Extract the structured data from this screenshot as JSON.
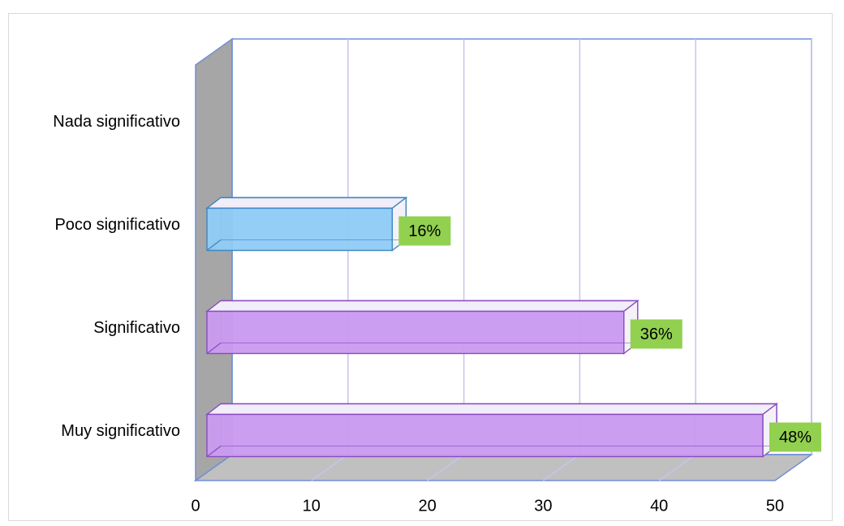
{
  "chart_data": {
    "type": "bar",
    "orientation": "horizontal",
    "style": "3d-clustered-bar",
    "categories": [
      "Nada significativo",
      "Poco significativo",
      "Significativo",
      "Muy significativo"
    ],
    "values": [
      0,
      16,
      36,
      48
    ],
    "data_labels": [
      "",
      "16%",
      "36%",
      "48%"
    ],
    "xlim": [
      0,
      50
    ],
    "x_ticks": [
      0,
      10,
      20,
      30,
      40,
      50
    ],
    "grid": true,
    "legend": "none",
    "colors": {
      "bar_fill": [
        "#b9a7f3",
        "#9fd3f7",
        "#cda5ef",
        "#cda5ef"
      ],
      "bar_fill_front": [
        "#b09ef5",
        "#8fcbf6",
        "#c99af0",
        "#c99af0"
      ],
      "bar_edge": [
        "#6a4fc4",
        "#3c86bf",
        "#8a4cc0",
        "#8a4cc0"
      ],
      "label_bg": "#92d050",
      "wall_side": "#a6a6a6",
      "floor": "#c0c0c0",
      "wall_edge": "#6f8fd8",
      "gridline": "#c9c4ee"
    }
  }
}
